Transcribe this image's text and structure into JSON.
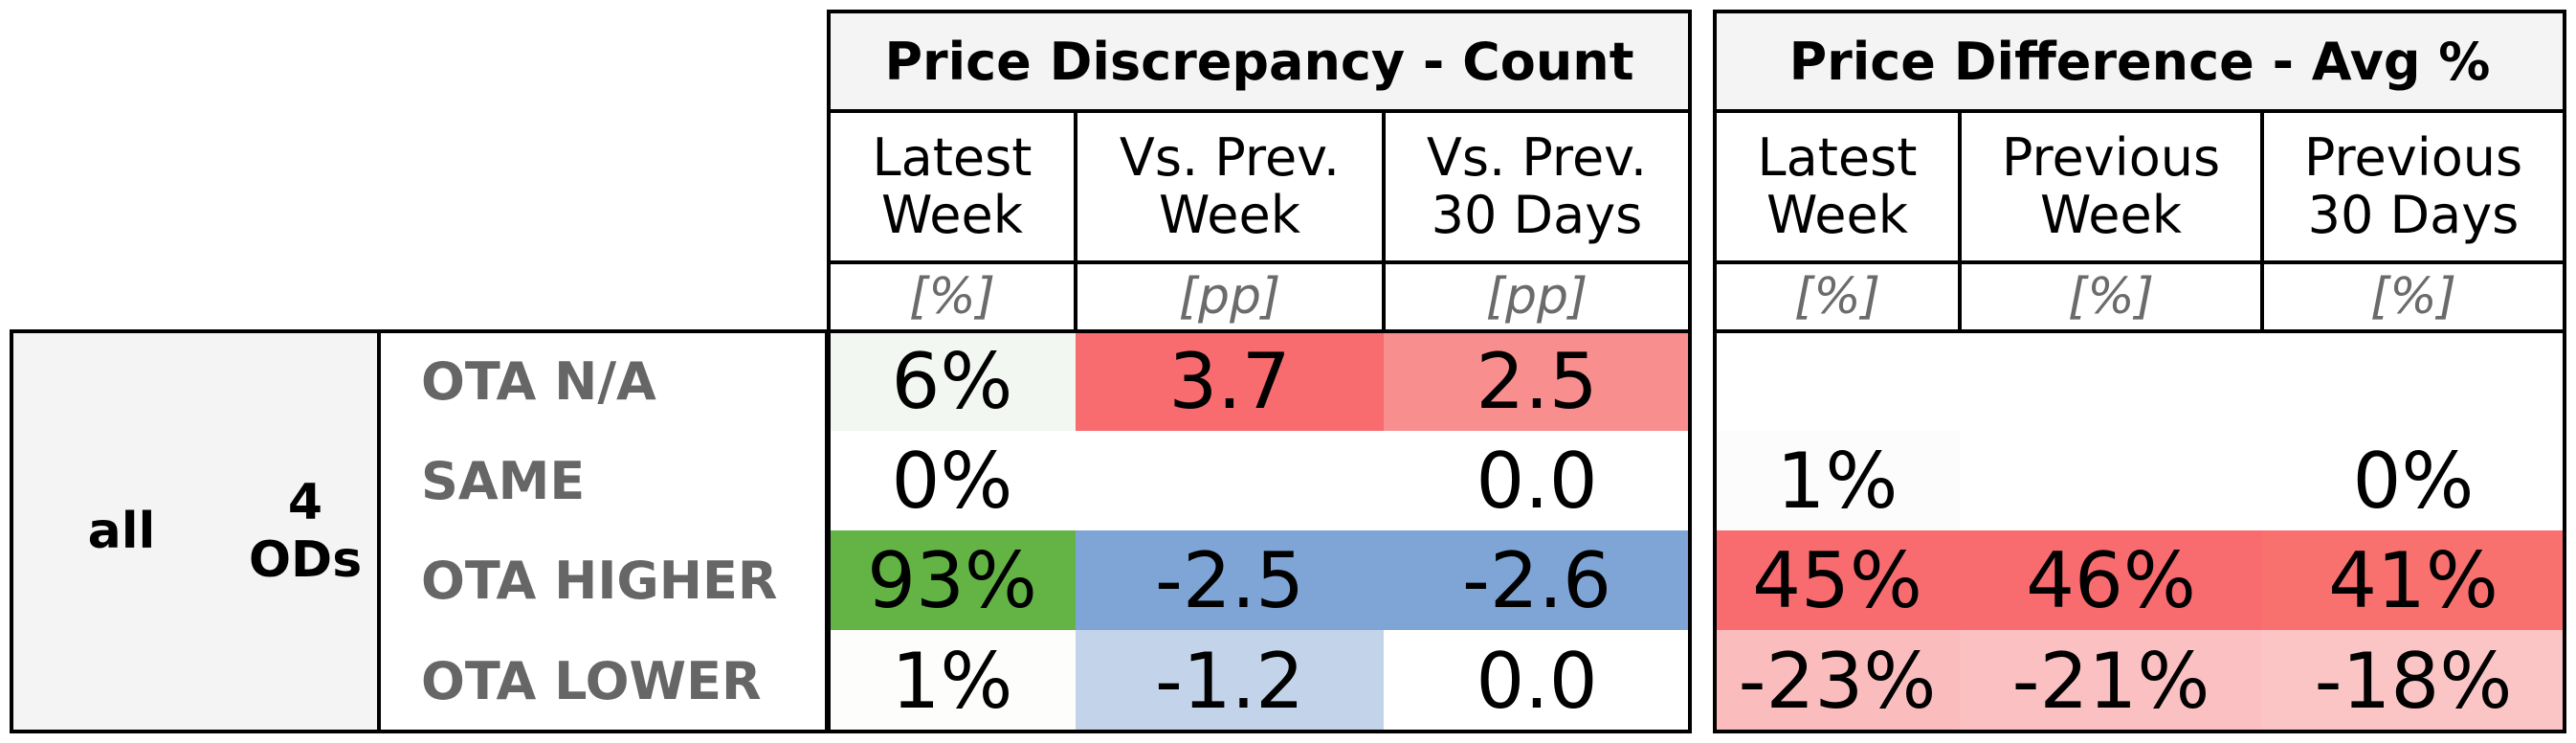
{
  "chart_data": {
    "type": "table",
    "groups": [
      {
        "title": "Price Discrepancy - Count",
        "columns": [
          {
            "header": "Latest\nWeek",
            "unit": "[%]"
          },
          {
            "header": "Vs. Prev.\nWeek",
            "unit": "[pp]"
          },
          {
            "header": "Vs. Prev.\n30 Days",
            "unit": "[pp]"
          }
        ]
      },
      {
        "title": "Price Difference - Avg %",
        "columns": [
          {
            "header": "Latest\nWeek",
            "unit": "[%]"
          },
          {
            "header": "Previous\nWeek",
            "unit": "[%]"
          },
          {
            "header": "Previous\n30 Days",
            "unit": "[%]"
          }
        ]
      }
    ],
    "row_group": {
      "segment": "all",
      "ods": "4\nODs"
    },
    "rows": [
      {
        "label": "OTA N/A",
        "cells": [
          {
            "text": "6%",
            "bg": "#f3f7f1"
          },
          {
            "text": "3.7",
            "bg": "#f86b6f"
          },
          {
            "text": "2.5",
            "bg": "#f98e8e"
          },
          {
            "text": "",
            "bg": "#ffffff"
          },
          {
            "text": "",
            "bg": "#ffffff"
          },
          {
            "text": "",
            "bg": "#ffffff"
          }
        ]
      },
      {
        "label": "SAME",
        "cells": [
          {
            "text": "0%",
            "bg": "#ffffff"
          },
          {
            "text": "",
            "bg": "#ffffff"
          },
          {
            "text": "0.0",
            "bg": "#ffffff"
          },
          {
            "text": "1%",
            "bg": "#fdfcfc"
          },
          {
            "text": "",
            "bg": "#ffffff"
          },
          {
            "text": "0%",
            "bg": "#ffffff"
          }
        ]
      },
      {
        "label": "OTA HIGHER",
        "cells": [
          {
            "text": "93%",
            "bg": "#63b445"
          },
          {
            "text": "-2.5",
            "bg": "#7ea5d6"
          },
          {
            "text": "-2.6",
            "bg": "#7ea5d6"
          },
          {
            "text": "45%",
            "bg": "#f86b6f"
          },
          {
            "text": "46%",
            "bg": "#f86b6f"
          },
          {
            "text": "41%",
            "bg": "#f9716f"
          }
        ]
      },
      {
        "label": "OTA LOWER",
        "cells": [
          {
            "text": "1%",
            "bg": "#fdfdfb"
          },
          {
            "text": "-1.2",
            "bg": "#c3d4ea"
          },
          {
            "text": "0.0",
            "bg": "#ffffff"
          },
          {
            "text": "-23%",
            "bg": "#fbbcbe"
          },
          {
            "text": "-21%",
            "bg": "#fbc0c1"
          },
          {
            "text": "-18%",
            "bg": "#fbc5c6"
          }
        ]
      }
    ]
  }
}
